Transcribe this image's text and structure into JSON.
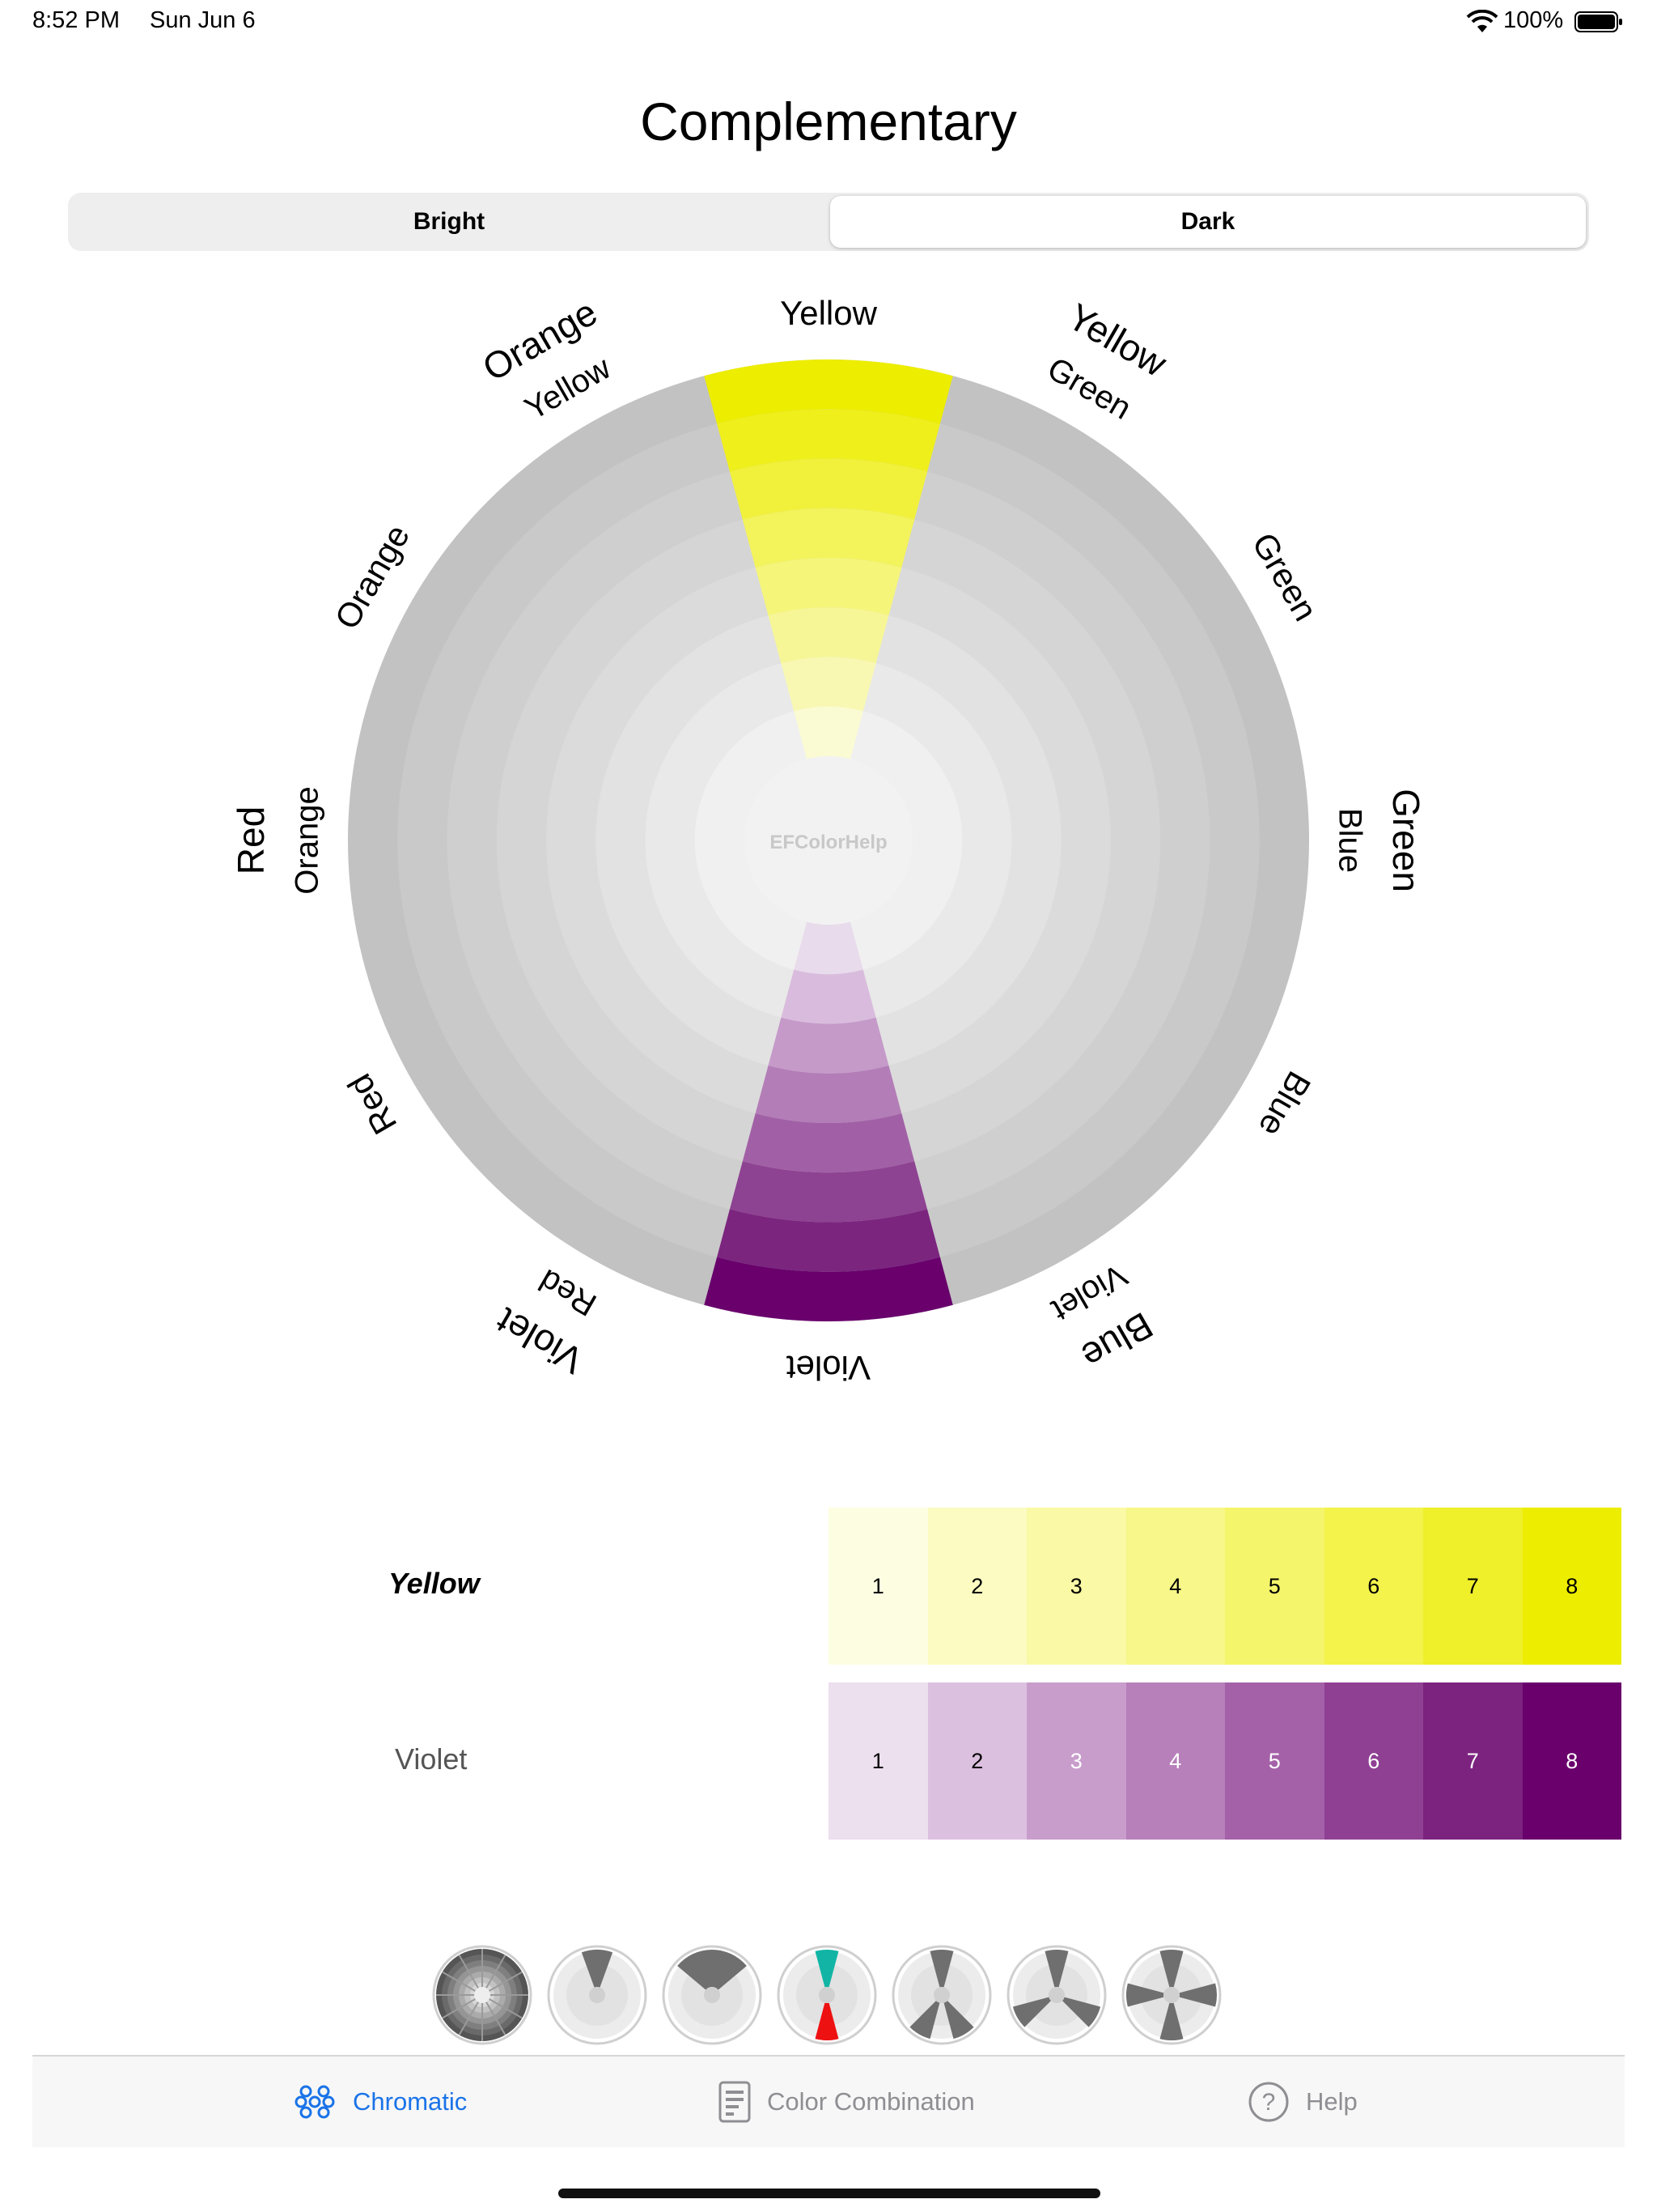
{
  "status": {
    "time": "8:52 PM",
    "date": "Sun Jun 6",
    "battery": "100%"
  },
  "title": "Complementary",
  "segment": {
    "options": [
      "Bright",
      "Dark"
    ],
    "selected": "Dark"
  },
  "wheel": {
    "center_label": "EFColorHelp",
    "labels": [
      {
        "lines": [
          "Yellow"
        ]
      },
      {
        "lines": [
          "Yellow",
          "Green"
        ]
      },
      {
        "lines": [
          "Green"
        ]
      },
      {
        "lines": [
          "Green",
          "Blue"
        ]
      },
      {
        "lines": [
          "Blue"
        ]
      },
      {
        "lines": [
          "Blue",
          "Violet"
        ]
      },
      {
        "lines": [
          "Violet"
        ]
      },
      {
        "lines": [
          "Violet",
          "Red"
        ]
      },
      {
        "lines": [
          "Red"
        ]
      },
      {
        "lines": [
          "Red",
          "Orange"
        ]
      },
      {
        "lines": [
          "Orange"
        ]
      },
      {
        "lines": [
          "Orange",
          "Yellow"
        ]
      }
    ],
    "highlight": {
      "yellow": [
        "#fbfbd3",
        "#f8f8b3",
        "#f6f697",
        "#f5f57a",
        "#f3f35c",
        "#f1f13c",
        "#efef1c",
        "#eded00"
      ],
      "violet": [
        "#e8dbeb",
        "#d9bcdd",
        "#c59ac9",
        "#b37db7",
        "#a160a6",
        "#8e4292",
        "#7b257f",
        "#69006c"
      ]
    },
    "ring_grays": [
      "#f0f0f0",
      "#e9e9e9",
      "#e2e2e2",
      "#dbdbdb",
      "#d5d5d5",
      "#cfcfcf",
      "#c9c9c9",
      "#c2c2c2"
    ]
  },
  "swatches": [
    {
      "name": "Yellow",
      "colors": [
        "#fdfde2",
        "#fbfbc2",
        "#f9f9a6",
        "#f7f78a",
        "#f5f56b",
        "#f3f34c",
        "#efef2a",
        "#eded00"
      ],
      "numbers": [
        "1",
        "2",
        "3",
        "4",
        "5",
        "6",
        "7",
        "8"
      ]
    },
    {
      "name": "Violet",
      "colors": [
        "#ecdfee",
        "#dcc0e0",
        "#c89dcb",
        "#b780ba",
        "#a461a8",
        "#8f4093",
        "#7b237f",
        "#69006c"
      ],
      "numbers": [
        "1",
        "2",
        "3",
        "4",
        "5",
        "6",
        "7",
        "8"
      ]
    }
  ],
  "thumbnails": [
    "chromatic-wheel-icon",
    "monochrome-wheel-icon",
    "analogous-wheel-icon",
    "complementary-wheel-icon",
    "split-complementary-wheel-icon",
    "triad-wheel-icon",
    "tetrad-wheel-icon"
  ],
  "tabs": [
    {
      "label": "Chromatic",
      "icon": "flower-icon",
      "active": true
    },
    {
      "label": "Color Combination",
      "icon": "document-icon",
      "active": false
    },
    {
      "label": "Help",
      "icon": "question-icon",
      "active": false
    }
  ]
}
